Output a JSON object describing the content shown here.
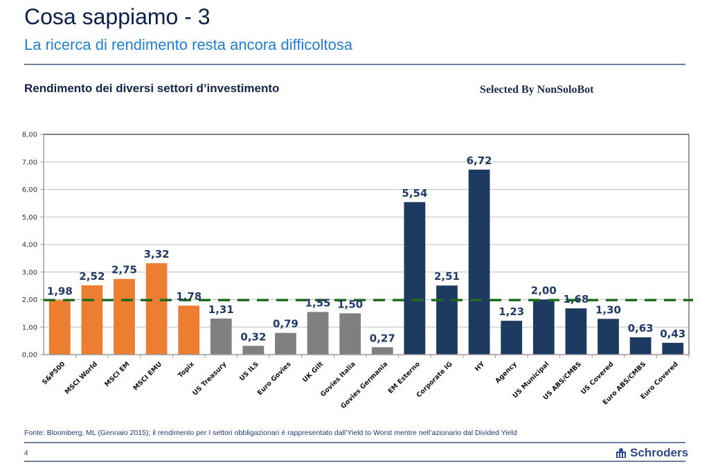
{
  "slide": {
    "title": "Cosa sappiamo - 3",
    "subtitle": "La ricerca di rendimento resta ancora difficoltosa",
    "chart_heading": "Rendimento dei diversi settori d’investimento",
    "watermark": "Selected By NonSoloBot",
    "footnote": "Fonte: Bloomberg, ML (Gennaio 2015); il rendimento per I settori obbligazionari è rappresentato dall’Yield to Worst mentre nell’azionario dal Divided Yield",
    "page_number": "4",
    "logo_text": "Schroders",
    "logo_icon": "crest-icon"
  },
  "colors": {
    "equity": "#ed7d31",
    "government_bonds": "#808080",
    "credit_bonds": "#1d3a61",
    "reference_line": "#1e6b1e",
    "value_label": "#1f3a68",
    "title": "#0d1f4c",
    "subtitle": "#1f7fd1"
  },
  "chart_data": {
    "type": "bar",
    "title": "Rendimento dei diversi settori d’investimento",
    "xlabel": "",
    "ylabel": "",
    "ylim": [
      0,
      8
    ],
    "yticks": [
      "0,00",
      "1,00",
      "2,00",
      "3,00",
      "4,00",
      "5,00",
      "6,00",
      "7,00",
      "8,00"
    ],
    "grid": true,
    "legend": "none",
    "categories": [
      "S&P500",
      "MSCI World",
      "MSCI EM",
      "MSCI EMU",
      "Topix",
      "US Treasury",
      "US ILS",
      "Euro Govies",
      "UK Gilt",
      "Govies Italia",
      "Govies Germania",
      "EM Esterno",
      "Corporate IG",
      "HY",
      "Agency",
      "US Municipal",
      "US ABS/CMBS",
      "US Covered",
      "Euro ABS/CMBS",
      "Euro Covered"
    ],
    "values": [
      1.98,
      2.52,
      2.75,
      3.32,
      1.78,
      1.31,
      0.32,
      0.79,
      1.55,
      1.5,
      0.27,
      5.54,
      2.51,
      6.72,
      1.23,
      2.0,
      1.68,
      1.3,
      0.63,
      0.43
    ],
    "value_labels": [
      "1,98",
      "2,52",
      "2,75",
      "3,32",
      "1,78",
      "1,31",
      "0,32",
      "0,79",
      "1,55",
      "1,50",
      "0,27",
      "5,54",
      "2,51",
      "6,72",
      "1,23",
      "2,00",
      "1,68",
      "1,30",
      "0,63",
      "0,43"
    ],
    "groups": [
      "equity",
      "equity",
      "equity",
      "equity",
      "equity",
      "government_bonds",
      "government_bonds",
      "government_bonds",
      "government_bonds",
      "government_bonds",
      "government_bonds",
      "credit_bonds",
      "credit_bonds",
      "credit_bonds",
      "credit_bonds",
      "credit_bonds",
      "credit_bonds",
      "credit_bonds",
      "credit_bonds",
      "credit_bonds"
    ],
    "reference_line": {
      "value": 1.98,
      "style": "dashed",
      "color": "#1e6b1e"
    }
  }
}
